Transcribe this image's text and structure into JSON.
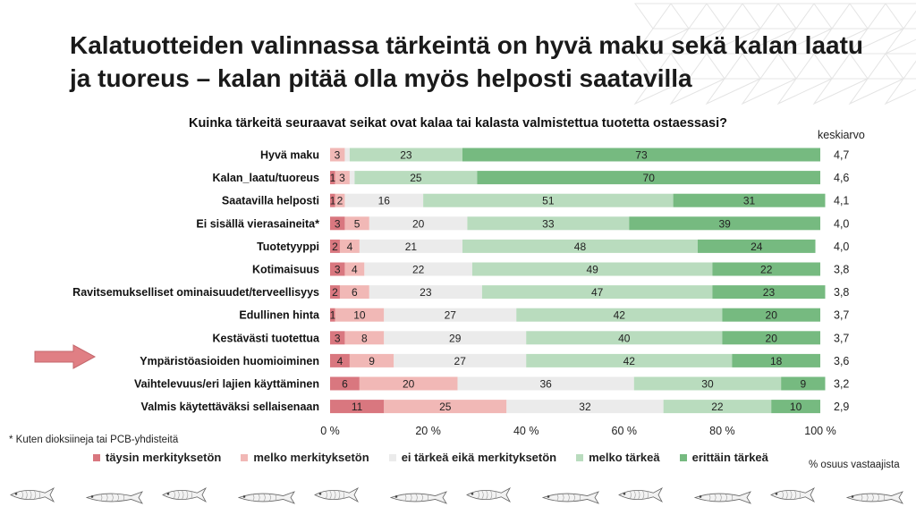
{
  "slide": {
    "title": "Kalatuotteiden valinnassa tärkeintä on hyvä maku sekä kalan laatu ja tuoreus – kalan pitää olla myös helposti saatavilla",
    "footnote": "* Kuten dioksiineja tai PCB-yhdisteitä",
    "unit_note": "% osuus vastaajista",
    "avg_header": "keskiarvo"
  },
  "chart_data": {
    "type": "bar",
    "orientation": "horizontal",
    "stacked": true,
    "title": "Kuinka tärkeitä seuraavat seikat ovat kalaa tai kalasta valmistettua tuotetta ostaessasi?",
    "categories": [
      "Hyvä maku",
      "Kalan_laatu/tuoreus",
      "Saatavilla helposti",
      "Ei sisällä vierasaineita*",
      "Tuotetyyppi",
      "Kotimaisuus",
      "Ravitsemukselliset ominaisuudet/terveellisyys",
      "Edullinen hinta",
      "Kestävästi tuotettua",
      "Ympäristöasioiden huomioiminen",
      "Vaihtelevuus/eri lajien käyttäminen",
      "Valmis käytettäväksi sellaisenaan"
    ],
    "series": [
      {
        "name": "täysin merkityksetön",
        "color": "#d9777f",
        "values": [
          0,
          1,
          1,
          3,
          2,
          3,
          2,
          1,
          3,
          4,
          6,
          11
        ]
      },
      {
        "name": "melko merkityksetön",
        "color": "#f1b8b6",
        "values": [
          3,
          3,
          2,
          5,
          4,
          4,
          6,
          10,
          8,
          9,
          20,
          25
        ]
      },
      {
        "name": "ei tärkeä eikä merkityksetön",
        "color": "#ebebeb",
        "values": [
          1,
          1,
          16,
          20,
          21,
          22,
          23,
          27,
          29,
          27,
          36,
          32
        ]
      },
      {
        "name": "melko tärkeä",
        "color": "#b9dcbe",
        "values": [
          23,
          25,
          51,
          33,
          48,
          49,
          47,
          42,
          40,
          42,
          30,
          22
        ]
      },
      {
        "name": "erittäin tärkeä",
        "color": "#76ba80",
        "values": [
          73,
          70,
          31,
          39,
          24,
          22,
          23,
          20,
          20,
          18,
          9,
          10
        ]
      }
    ],
    "labels": [
      [
        "0",
        "3",
        "",
        "23",
        "73"
      ],
      [
        "1",
        "3",
        "",
        "25",
        "70"
      ],
      [
        "1",
        "2",
        "16",
        "51",
        "31"
      ],
      [
        "3",
        "5",
        "20",
        "33",
        "39"
      ],
      [
        "2",
        "4",
        "21",
        "48",
        "24"
      ],
      [
        "3",
        "4",
        "22",
        "49",
        "22"
      ],
      [
        "2",
        "6",
        "23",
        "47",
        "23"
      ],
      [
        "1",
        "10",
        "27",
        "42",
        "20"
      ],
      [
        "3",
        "8",
        "29",
        "40",
        "20"
      ],
      [
        "4",
        "9",
        "27",
        "42",
        "18"
      ],
      [
        "6",
        "20",
        "36",
        "30",
        "9"
      ],
      [
        "11",
        "25",
        "32",
        "22",
        "10"
      ]
    ],
    "averages": [
      "4,7",
      "4,6",
      "4,1",
      "4,0",
      "4,0",
      "3,8",
      "3,8",
      "3,7",
      "3,7",
      "3,6",
      "3,2",
      "2,9"
    ],
    "xticks": [
      "0 %",
      "20 %",
      "40 %",
      "60 %",
      "80 %",
      "100 %"
    ],
    "xlim": [
      0,
      100
    ],
    "legend_position": "bottom",
    "highlighted_category_index": 9
  },
  "decor": {
    "arrow_color": "#e07f84",
    "fish_count": 12
  }
}
